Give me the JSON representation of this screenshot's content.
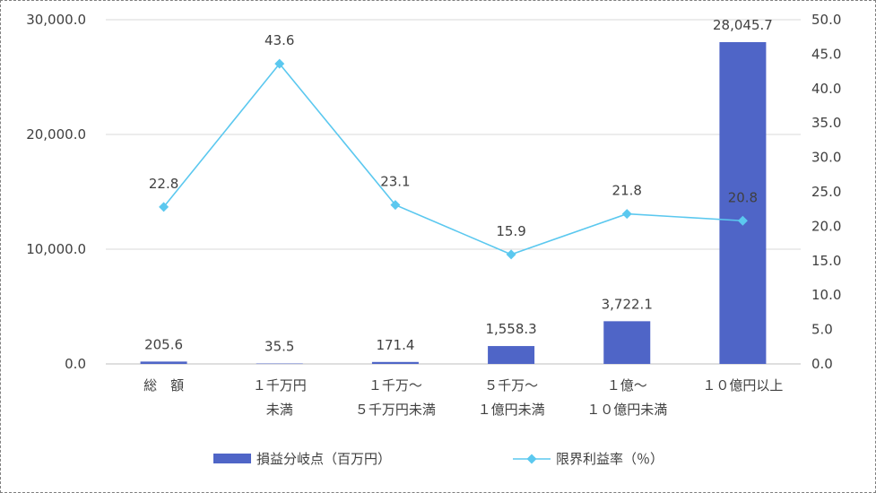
{
  "chart_data": {
    "type": "bar+line",
    "categories": [
      [
        "総　額"
      ],
      [
        "１千万円",
        "未満"
      ],
      [
        "１千万～",
        "５千万円未満"
      ],
      [
        "５千万～",
        "１億円未満"
      ],
      [
        "１億～",
        "１０億円未満"
      ],
      [
        "１０億円以上"
      ]
    ],
    "series": [
      {
        "name": "損益分岐点（百万円）",
        "type": "bar",
        "axis": "left",
        "color": "#4f65c7",
        "values": [
          205.6,
          35.5,
          171.4,
          1558.3,
          3722.1,
          28045.7
        ],
        "labels": [
          "205.6",
          "35.5",
          "171.4",
          "1,558.3",
          "3,722.1",
          "28,045.7"
        ]
      },
      {
        "name": "限界利益率（％）",
        "type": "line",
        "axis": "right",
        "color": "#5bc8ef",
        "marker": "diamond",
        "values": [
          22.8,
          43.6,
          23.1,
          15.9,
          21.8,
          20.8
        ],
        "labels": [
          "22.8",
          "43.6",
          "23.1",
          "15.9",
          "21.8",
          "20.8"
        ]
      }
    ],
    "y_left": {
      "min": 0,
      "max": 30000,
      "step": 10000,
      "ticks": [
        "0.0",
        "10,000.0",
        "20,000.0",
        "30,000.0"
      ]
    },
    "y_right": {
      "min": 0,
      "max": 50,
      "step": 5,
      "ticks": [
        "0.0",
        "5.0",
        "10.0",
        "15.0",
        "20.0",
        "25.0",
        "30.0",
        "35.0",
        "40.0",
        "45.0",
        "50.0"
      ]
    },
    "grid": true,
    "legend": "bottom"
  }
}
